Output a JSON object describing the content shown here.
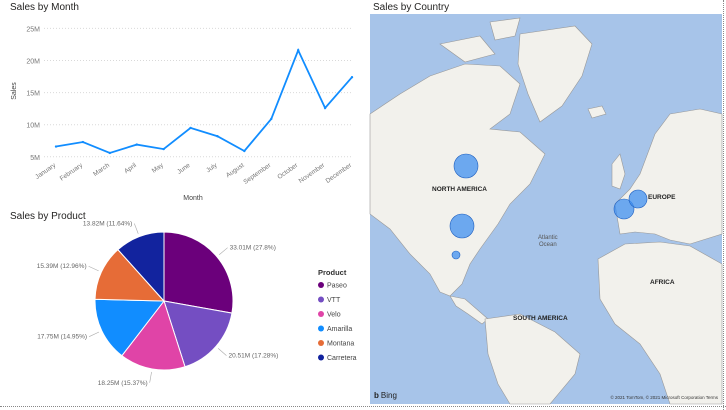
{
  "line_title": "Sales by Month",
  "pie_title": "Sales by Product",
  "map_title": "Sales by Country",
  "chart_data": [
    {
      "type": "line",
      "title": "Sales by Month",
      "xlabel": "Month",
      "ylabel": "Sales",
      "categories": [
        "January",
        "February",
        "March",
        "April",
        "May",
        "June",
        "July",
        "August",
        "September",
        "October",
        "November",
        "December"
      ],
      "values": [
        6.6,
        7.3,
        5.6,
        6.9,
        6.2,
        9.5,
        8.2,
        5.9,
        10.9,
        21.6,
        12.6,
        17.4
      ],
      "y_ticks": [
        "5M",
        "10M",
        "15M",
        "20M",
        "25M"
      ],
      "ylim": [
        4.5,
        26
      ],
      "color": "#118dff",
      "grid": true
    },
    {
      "type": "pie",
      "title": "Sales by Product",
      "legend_title": "Product",
      "legend_position": "right",
      "slices": [
        {
          "label": "Paseo",
          "value": 33.01,
          "text": "33.01M (27.8%)",
          "color": "#6b007b"
        },
        {
          "label": "VTT",
          "value": 20.51,
          "text": "20.51M (17.28%)",
          "color": "#744ec2"
        },
        {
          "label": "Velo",
          "value": 18.25,
          "text": "18.25M (15.37%)",
          "color": "#e044a7"
        },
        {
          "label": "Amarilla",
          "value": 17.75,
          "text": "17.75M (14.95%)",
          "color": "#118dff"
        },
        {
          "label": "Montana",
          "value": 15.39,
          "text": "15.39M (12.96%)",
          "color": "#e66c37"
        },
        {
          "label": "Carretera",
          "value": 13.82,
          "text": "13.82M (11.64%)",
          "color": "#12239e"
        }
      ]
    }
  ],
  "map": {
    "labels": {
      "north_america": "NORTH AMERICA",
      "europe": "EUROPE",
      "south_america": "SOUTH AMERICA",
      "africa": "AFRICA"
    },
    "ocean_line1": "Atlantic",
    "ocean_line2": "Ocean",
    "bing": "Bing",
    "copyright": "© 2021 TomTom, © 2021 Microsoft Corporation Terms",
    "colors": {
      "water": "#a7c4e9",
      "land": "#f2f1ec",
      "bubble": "#3f8ff0"
    }
  }
}
